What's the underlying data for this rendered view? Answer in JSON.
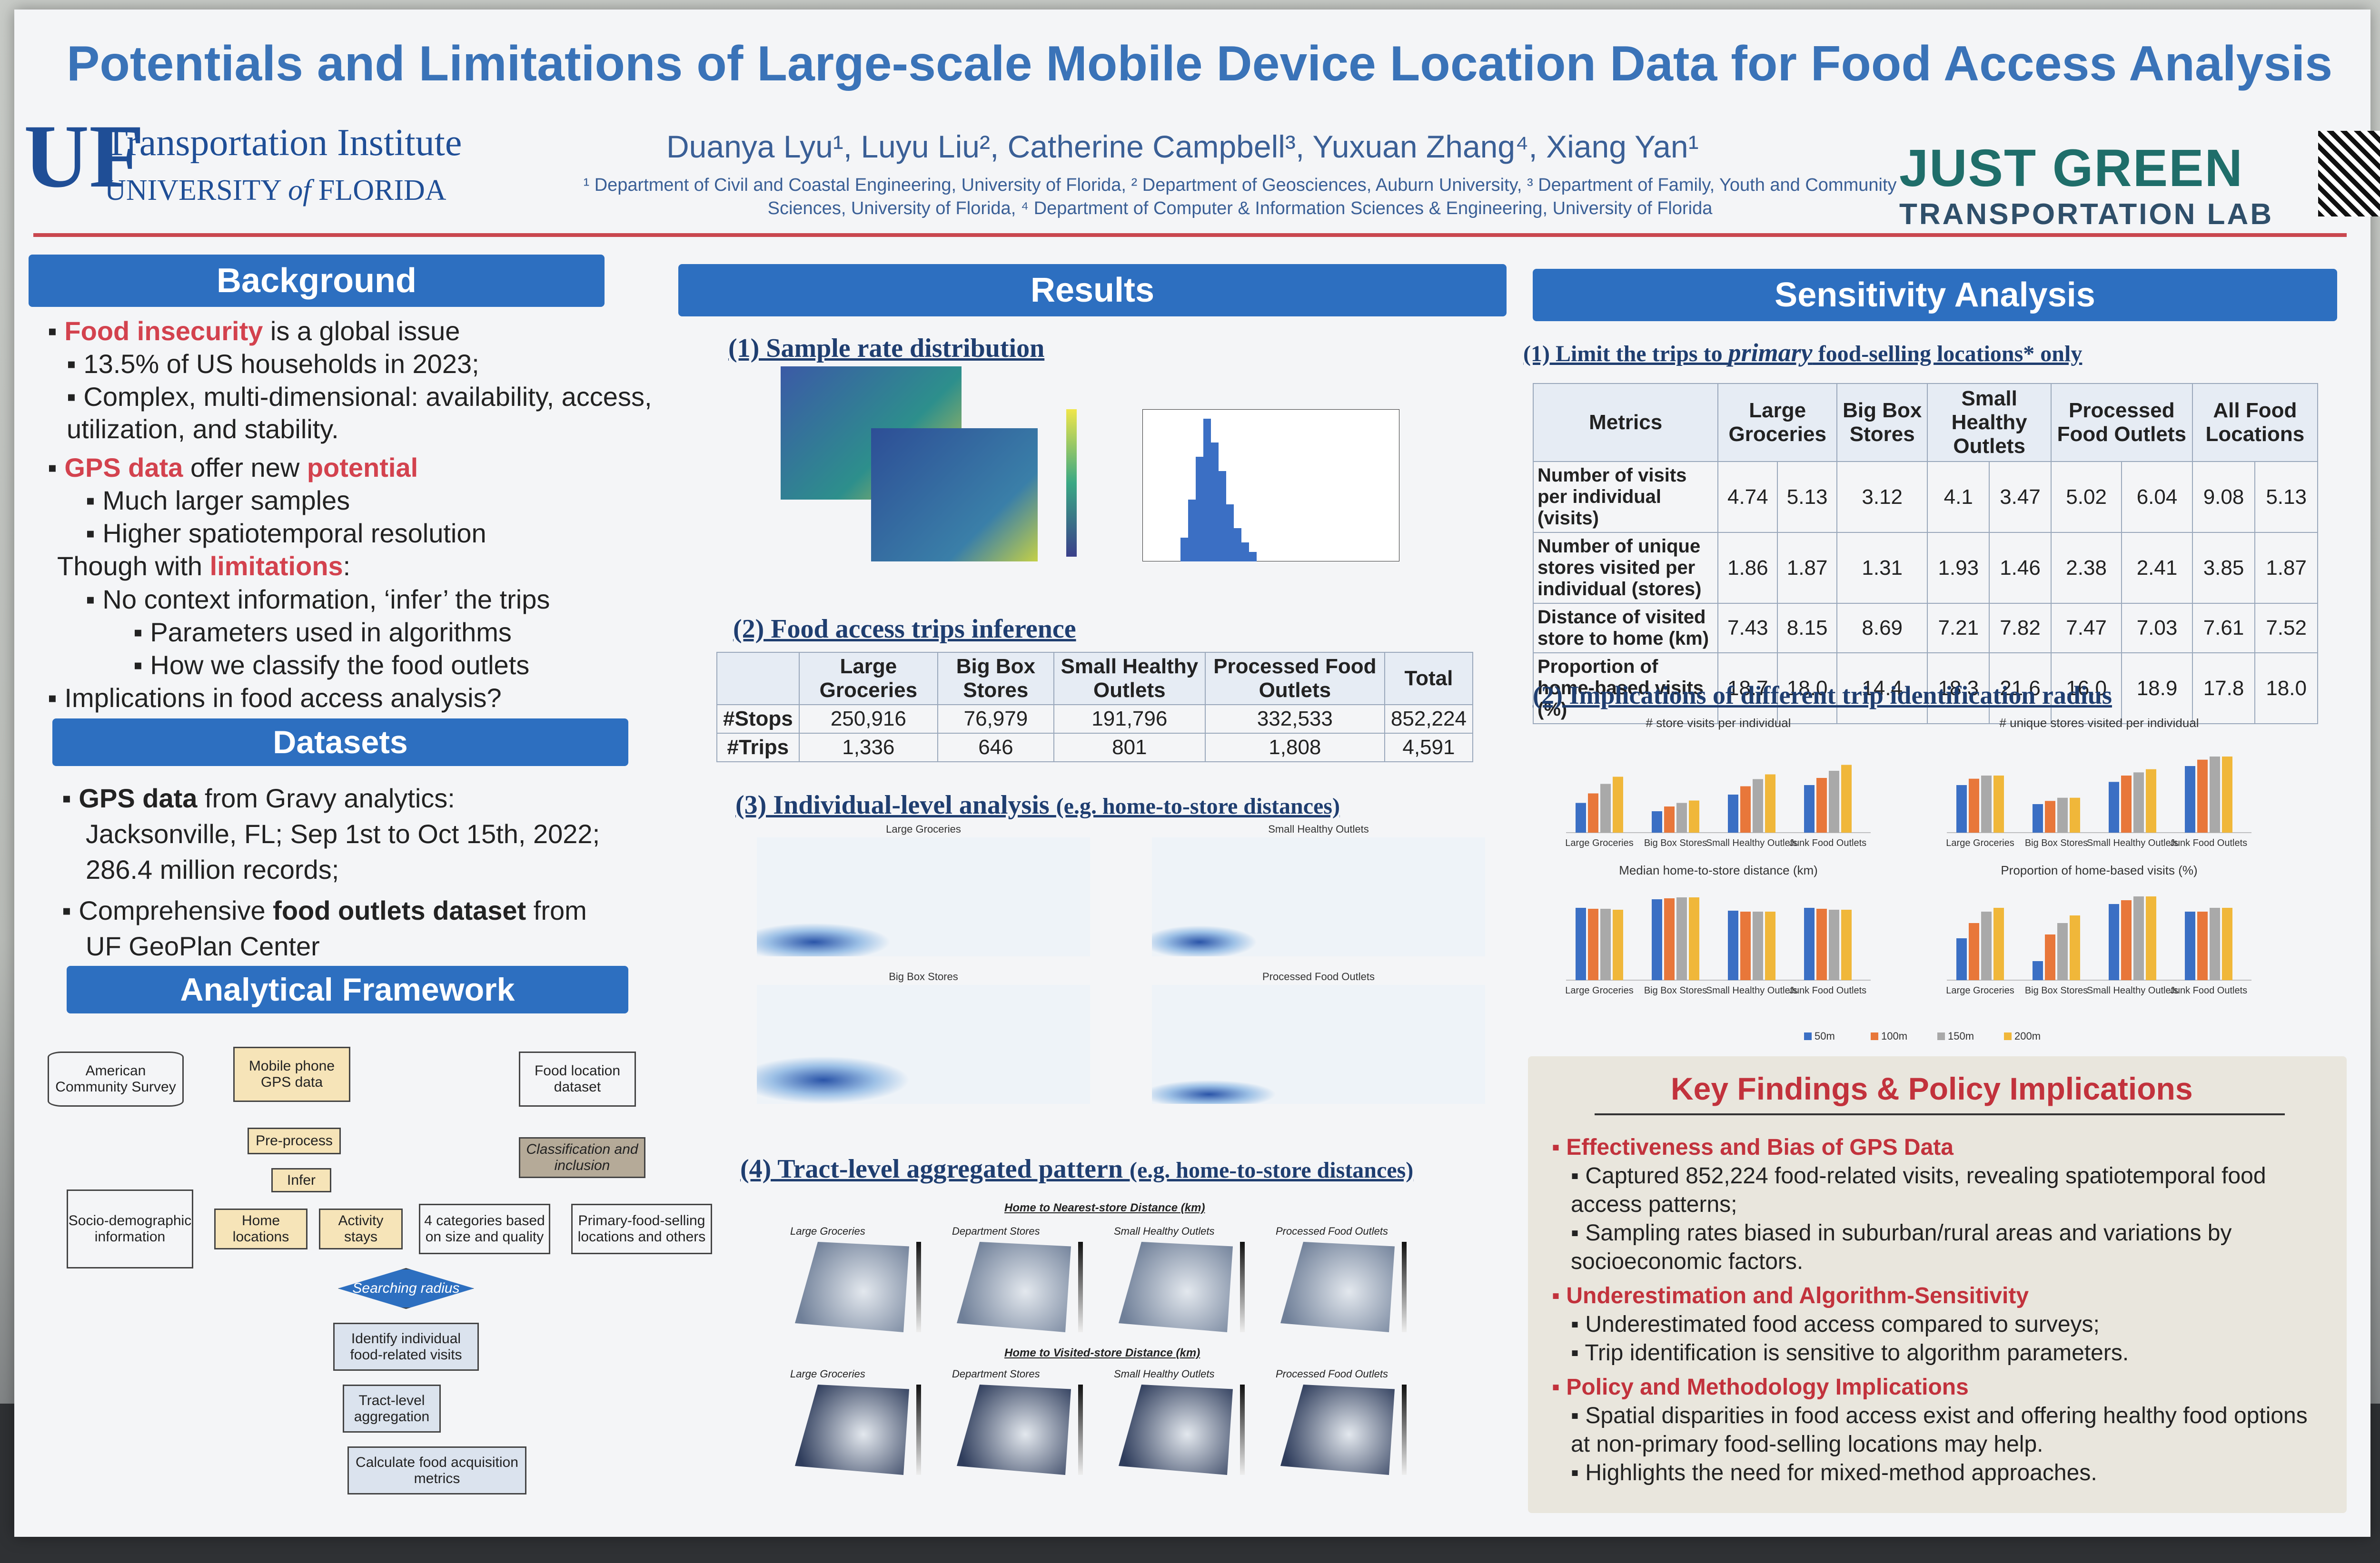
{
  "title": "Potentials and Limitations of Large-scale Mobile Device Location Data for Food Access Analysis",
  "logo": {
    "mark": "UF",
    "institute": "Transportation Institute",
    "university": "UNIVERSITY",
    "of": "of",
    "state": "FLORIDA"
  },
  "authors": "Duanya Lyu¹, Luyu Liu², Catherine Campbell³, Yuxuan Zhang⁴, Xiang Yan¹",
  "affiliations": "¹ Department of Civil and Coastal Engineering, University of Florida, ² Department of Geosciences, Auburn University, ³ Department of Family, Youth and Community Sciences, University of Florida, ⁴ Department of Computer & Information Sciences & Engineering, University of Florida",
  "lab": {
    "name": "JUST GREEN",
    "sub": "TRANSPORTATION LAB"
  },
  "background": {
    "heading": "Background",
    "l1a": "Food insecurity",
    "l1b": " is a global issue",
    "l2": "13.5% of US households in 2023;",
    "l3": "Complex, multi-dimensional: availability, access, utilization, and stability.",
    "l4a": "GPS data",
    "l4b": " offer new ",
    "l4c": "potential",
    "l5": "Much larger samples",
    "l6": "Higher spatiotemporal resolution",
    "l7a": "Though with ",
    "l7b": "limitations",
    "l7c": ":",
    "l8": "No context information, ‘infer’ the trips",
    "l9": "Parameters used in algorithms",
    "l10": "How we classify the food outlets",
    "l11": "Implications in food access analysis?"
  },
  "datasets": {
    "heading": "Datasets",
    "d1a": "GPS data",
    "d1b": " from Gravy analytics:",
    "d2": "Jacksonville, FL; Sep 1st to Oct 15th, 2022;",
    "d3": "286.4 million records;",
    "d4a": "Comprehensive ",
    "d4b": "food outlets dataset",
    "d4c": " from",
    "d5": "UF GeoPlan Center"
  },
  "framework": {
    "heading": "Analytical Framework",
    "acs": "American Community Survey",
    "mobile": "Mobile phone GPS data",
    "food": "Food location dataset",
    "preprocess": "Pre-process",
    "infer": "Infer",
    "home": "Home locations",
    "activity": "Activity stays",
    "classify": "Classification and inclusion",
    "socio": "Socio-demographic information",
    "cat4": "4 categories based on size and quality",
    "primary": "Primary-food-selling locations and others",
    "radius": "Searching radius",
    "identify": "Identify individual food-related visits",
    "tract": "Tract-level aggregation",
    "calc": "Calculate food acquisition metrics"
  },
  "results": {
    "heading": "Results",
    "s1": "(1) Sample rate distribution",
    "s2": "(2) Food access trips inference",
    "s3a": "(3) Individual-level analysis ",
    "s3b": "(e.g. home-to-store distances)",
    "s4a": "(4) Tract-level aggregated pattern ",
    "s4b": "(e.g. home-to-store distances)",
    "trip_table": {
      "headers": [
        "",
        "Large Groceries",
        "Big Box Stores",
        "Small Healthy Outlets",
        "Processed Food Outlets",
        "Total"
      ],
      "rows": [
        [
          "#Stops",
          "250,916",
          "76,979",
          "191,796",
          "332,533",
          "852,224"
        ],
        [
          "#Trips",
          "1,336",
          "646",
          "801",
          "1,808",
          "4,591"
        ]
      ]
    },
    "panels": {
      "p1": "Large Groceries",
      "p2": "Small Healthy Outlets",
      "p3": "Big Box Stores",
      "p4": "Processed Food Outlets"
    },
    "map_head1": "Home to Nearest-store Distance (km)",
    "map_head2": "Home to Visited-store Distance (km)",
    "map_labels": [
      "Large Groceries",
      "Department Stores",
      "Small Healthy Outlets",
      "Processed Food Outlets"
    ]
  },
  "sensitivity": {
    "heading": "Sensitivity Analysis",
    "s1a": "(1) Limit the trips to ",
    "s1b": "primary",
    "s1c": " food-selling locations* only",
    "table": {
      "headers": [
        "Metrics",
        "Large Groceries",
        "Big Box Stores",
        "Small Healthy Outlets",
        "Processed Food Outlets",
        "All Food Locations"
      ],
      "rows": [
        [
          "Number of visits per individual (visits)",
          "4.74",
          "5.13",
          "3.12",
          "4.1",
          "3.47",
          "5.02",
          "6.04",
          "9.08",
          "5.13"
        ],
        [
          "Number of unique stores visited per individual (stores)",
          "1.86",
          "1.87",
          "1.31",
          "1.93",
          "1.46",
          "2.38",
          "2.41",
          "3.85",
          "1.87"
        ],
        [
          "Distance of visited store to home (km)",
          "7.43",
          "8.15",
          "8.69",
          "7.21",
          "7.82",
          "7.47",
          "7.03",
          "7.61",
          "7.52"
        ],
        [
          "Proportion of home-based visits (%)",
          "18.7",
          "18.0",
          "14.4",
          "18.3",
          "21.6",
          "16.0",
          "18.9",
          "17.8",
          "18.0"
        ]
      ]
    },
    "s2": "(2) Implications of different trip identification radius",
    "chart_titles": [
      "# store visits per individual",
      "# unique stores visited per individual",
      "Median home-to-store distance (km)",
      "Proportion of home-based visits (%)"
    ],
    "legend": [
      "50m",
      "100m",
      "150m",
      "200m"
    ]
  },
  "chart_data": [
    {
      "type": "bar",
      "title": "# store visits per individual",
      "categories": [
        "Large Groceries",
        "Big Box Stores",
        "Small Healthy Outlets",
        "Junk Food Outlets"
      ],
      "ylim": [
        0,
        8
      ],
      "series": [
        {
          "name": "50m",
          "values": [
            2.5,
            1.8,
            3.2,
            4.0
          ]
        },
        {
          "name": "100m",
          "values": [
            3.3,
            2.2,
            3.9,
            4.6
          ]
        },
        {
          "name": "150m",
          "values": [
            4.1,
            2.5,
            4.5,
            5.2
          ]
        },
        {
          "name": "200m",
          "values": [
            4.7,
            2.7,
            4.9,
            5.7
          ]
        }
      ]
    },
    {
      "type": "bar",
      "title": "# unique stores visited per individual",
      "categories": [
        "Large Groceries",
        "Big Box Stores",
        "Small Healthy Outlets",
        "Junk Food Outlets"
      ],
      "ylim": [
        0,
        3
      ],
      "series": [
        {
          "name": "50m",
          "values": [
            1.5,
            0.9,
            1.6,
            2.1
          ]
        },
        {
          "name": "100m",
          "values": [
            1.7,
            1.0,
            1.8,
            2.3
          ]
        },
        {
          "name": "150m",
          "values": [
            1.8,
            1.1,
            1.9,
            2.4
          ]
        },
        {
          "name": "200m",
          "values": [
            1.8,
            1.1,
            2.0,
            2.4
          ]
        }
      ]
    },
    {
      "type": "bar",
      "title": "Median home-to-store distance (km)",
      "categories": [
        "Large Groceries",
        "Big Box Stores",
        "Small Healthy Outlets",
        "Junk Food Outlets"
      ],
      "ylim": [
        0,
        10
      ],
      "series": [
        {
          "name": "50m",
          "values": [
            7.6,
            8.5,
            7.3,
            7.6
          ]
        },
        {
          "name": "100m",
          "values": [
            7.5,
            8.6,
            7.2,
            7.5
          ]
        },
        {
          "name": "150m",
          "values": [
            7.5,
            8.7,
            7.2,
            7.4
          ]
        },
        {
          "name": "200m",
          "values": [
            7.4,
            8.7,
            7.2,
            7.4
          ]
        }
      ]
    },
    {
      "type": "bar",
      "title": "Proportion of home-based visits (%)",
      "categories": [
        "Large Groceries",
        "Big Box Stores",
        "Small Healthy Outlets",
        "Junk Food Outlets"
      ],
      "ylim": [
        0,
        25
      ],
      "series": [
        {
          "name": "50m",
          "values": [
            11,
            5,
            20,
            18
          ]
        },
        {
          "name": "100m",
          "values": [
            15,
            12,
            21,
            18
          ]
        },
        {
          "name": "150m",
          "values": [
            18,
            15,
            22,
            19
          ]
        },
        {
          "name": "200m",
          "values": [
            19,
            17,
            22,
            19
          ]
        }
      ]
    }
  ],
  "colors": {
    "accent": "#2d6fc0",
    "red": "#c2323c",
    "s1": "#3b6fc4",
    "s2": "#e8773a",
    "s3": "#a9a9a9",
    "s4": "#f0b73a"
  },
  "key_findings": {
    "heading": "Key Findings & Policy Implications",
    "h1": "Effectiveness and Bias of GPS Data",
    "b1": "Captured 852,224 food-related visits, revealing spatiotemporal food access patterns;",
    "b2": "Sampling rates biased in suburban/rural areas and variations by socioeconomic factors.",
    "h2": "Underestimation and Algorithm-Sensitivity",
    "b3": "Underestimated food access compared to surveys;",
    "b4": "Trip identification is sensitive to algorithm parameters.",
    "h3": "Policy and Methodology Implications",
    "b5": "Spatial disparities in food access exist and offering healthy food options at non-primary food-selling locations may help.",
    "b6": "Highlights the need for mixed-method approaches."
  }
}
